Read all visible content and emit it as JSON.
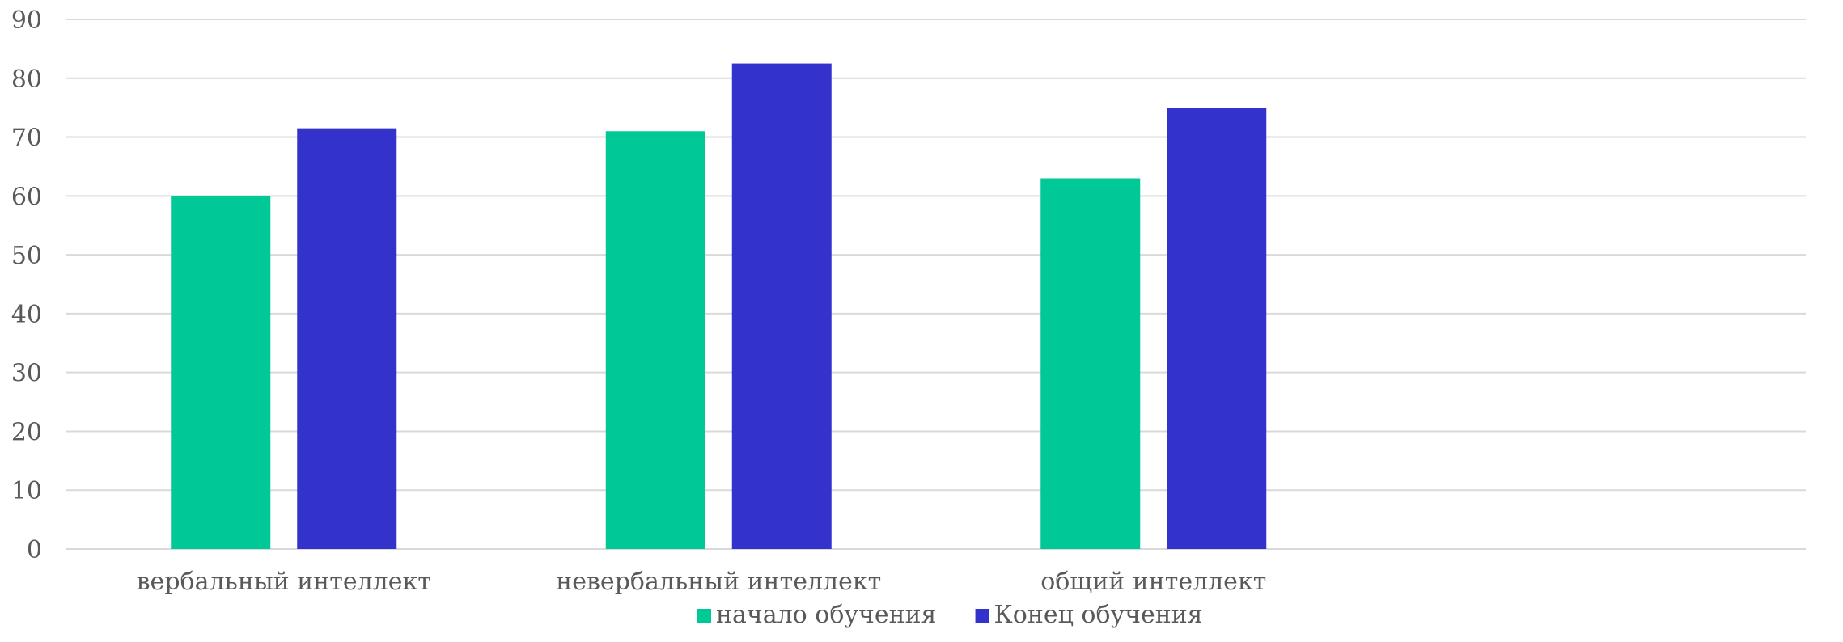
{
  "chart_data": {
    "type": "bar",
    "categories": [
      "вербальный интеллект",
      "невербальный интеллект",
      "общий интеллект",
      ""
    ],
    "series": [
      {
        "name": "начало обучения",
        "values": [
          60,
          71,
          63,
          null
        ],
        "color": "#00c896"
      },
      {
        "name": "Конец обучения",
        "values": [
          71.5,
          82.5,
          75,
          null
        ],
        "color": "#3333cc"
      }
    ],
    "ylim": [
      0,
      90
    ],
    "yticks": [
      0,
      10,
      20,
      30,
      40,
      50,
      60,
      70,
      80,
      90
    ],
    "grid": true,
    "legend": "bottom-center",
    "gridline_color": "#d9d9d9",
    "text_color": "#595959"
  }
}
